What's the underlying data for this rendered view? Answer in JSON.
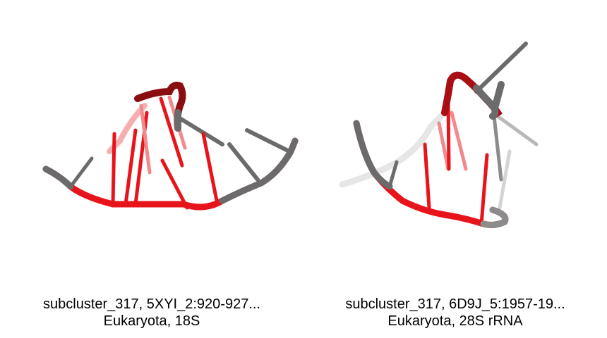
{
  "panels": [
    {
      "caption_line1": "subcluster_317, 5XYI_2:920-927...",
      "caption_line2": "Eukaryota, 18S"
    },
    {
      "caption_line1": "subcluster_317, 6D9J_5:1957-19...",
      "caption_line2": "Eukaryota, 28S rRNA"
    }
  ],
  "colors": {
    "highlight": "#e8141b",
    "backbone": "#6b6b6b",
    "background": "#ffffff"
  }
}
